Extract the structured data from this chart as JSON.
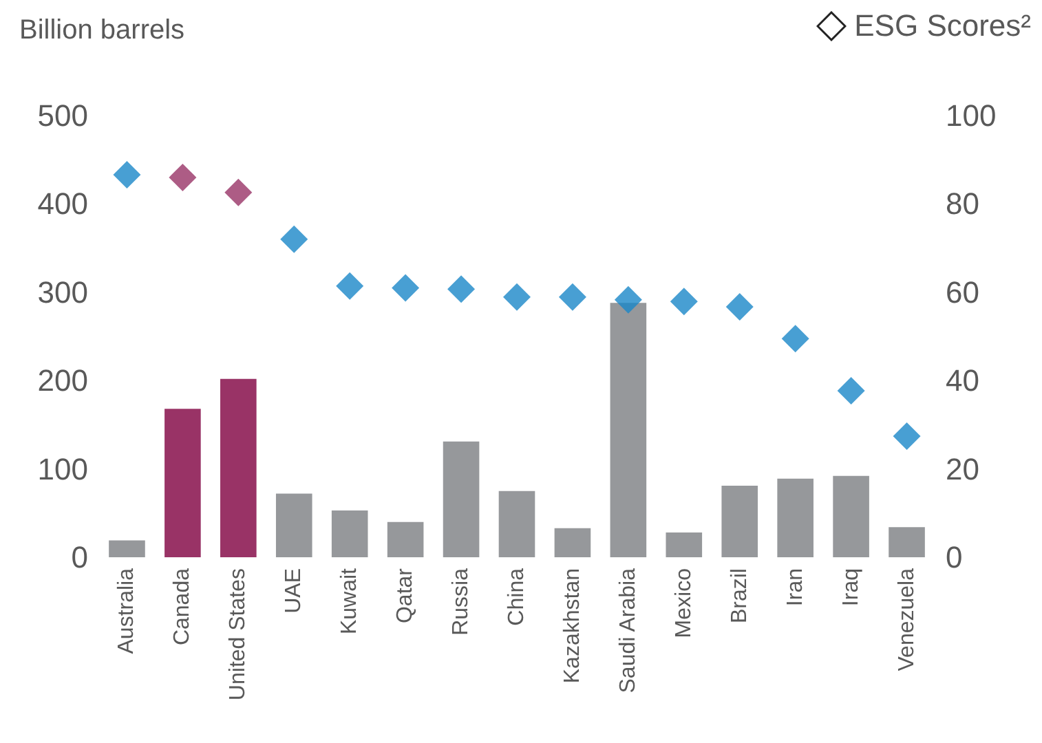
{
  "chart_data": {
    "type": "bar",
    "ylabel": "Billion barrels",
    "categories": [
      "Australia",
      "Canada",
      "United States",
      "UAE",
      "Kuwait",
      "Qatar",
      "Russia",
      "China",
      "Kazakhstan",
      "Saudi Arabia",
      "Mexico",
      "Brazil",
      "Iran",
      "Iraq",
      "Venezuela"
    ],
    "series": [
      {
        "values": [
          19,
          168,
          202,
          72,
          53,
          40,
          131,
          75,
          33,
          288,
          28,
          81,
          89,
          92,
          34
        ],
        "colors": [
          "#96989b",
          "#993366",
          "#993366",
          "#96989b",
          "#96989b",
          "#96989b",
          "#96989b",
          "#96989b",
          "#96989b",
          "#96989b",
          "#96989b",
          "#96989b",
          "#96989b",
          "#96989b",
          "#96989b"
        ]
      },
      {
        "type": "scatter",
        "name": "ESG Scores²",
        "axis": "y2",
        "x": [
          "Australia",
          "Canada",
          "United States",
          "UAE",
          "Kuwait",
          "Qatar",
          "Russia",
          "China",
          "Kazakhstan",
          "Saudi Arabia",
          "Mexico",
          "Brazil",
          "Iran",
          "Iraq",
          "Venezuela"
        ],
        "values": [
          86.6,
          86,
          82.6,
          72,
          61.4,
          61,
          60.7,
          58.9,
          58.9,
          58.3,
          57.9,
          56.7,
          49.5,
          37.7,
          27.4
        ],
        "colors": [
          "#1a87c8",
          "#993366",
          "#993366",
          "#1a87c8",
          "#1a87c8",
          "#1a87c8",
          "#1a87c8",
          "#1a87c8",
          "#1a87c8",
          "#1a87c8",
          "#1a87c8",
          "#1a87c8",
          "#1a87c8",
          "#1a87c8",
          "#1a87c8"
        ]
      }
    ],
    "ylim": [
      0,
      500
    ],
    "yticks": [
      0,
      100,
      200,
      300,
      400,
      500
    ],
    "y2lim": [
      0,
      100
    ],
    "y2ticks": [
      0,
      20,
      40,
      60,
      80,
      100
    ],
    "marker": "diamond",
    "legend": "top right",
    "grid": false
  }
}
